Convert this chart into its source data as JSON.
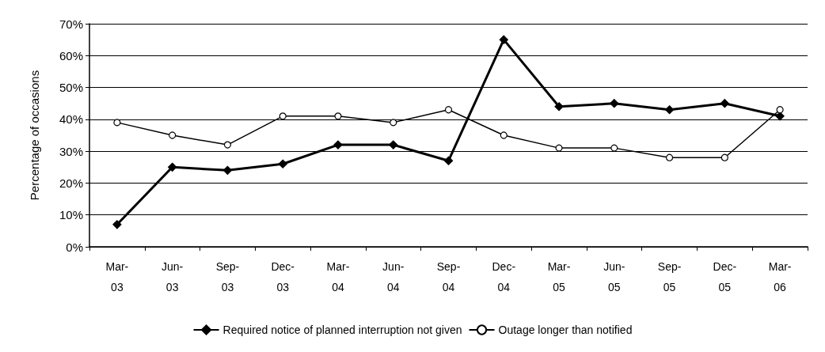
{
  "chart_data": {
    "type": "line",
    "ylabel": "Percentage of occasions",
    "categories": [
      "Mar-\n03",
      "Jun-\n03",
      "Sep-\n03",
      "Dec-\n03",
      "Mar-\n04",
      "Jun-\n04",
      "Sep-\n04",
      "Dec-\n04",
      "Mar-\n05",
      "Jun-\n05",
      "Sep-\n05",
      "Dec-\n05",
      "Mar-\n06"
    ],
    "series": [
      {
        "name": "Required notice of planned interruption not given",
        "color": "#000000",
        "marker": "diamond",
        "values": [
          7,
          25,
          24,
          26,
          32,
          32,
          27,
          65,
          44,
          45,
          43,
          45,
          41
        ]
      },
      {
        "name": "Outage longer than notified",
        "color": "#000000",
        "marker": "circle",
        "values": [
          39,
          35,
          32,
          41,
          41,
          39,
          43,
          35,
          31,
          31,
          28,
          28,
          43
        ]
      }
    ],
    "ylim": [
      0,
      70
    ],
    "yticks": [
      {
        "value": 0,
        "label": "0%"
      },
      {
        "value": 10,
        "label": "10%"
      },
      {
        "value": 20,
        "label": "20%"
      },
      {
        "value": 30,
        "label": "30%"
      },
      {
        "value": 40,
        "label": "40%"
      },
      {
        "value": 50,
        "label": "50%"
      },
      {
        "value": 60,
        "label": "60%"
      },
      {
        "value": 70,
        "label": "70%"
      }
    ],
    "grid": "y",
    "legend": "bottom"
  }
}
